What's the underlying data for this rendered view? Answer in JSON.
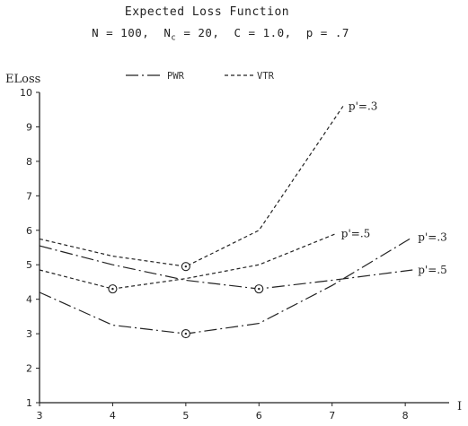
{
  "chart_data": {
    "type": "line",
    "title": "Expected Loss Function",
    "subtitle": "N = 100,  N_c = 20,  C = 1.0,  p = .7",
    "ylabel": "ELoss",
    "xlabel": "I",
    "xlim": [
      3,
      8.6
    ],
    "ylim": [
      1,
      10
    ],
    "x_ticks": [
      3,
      4,
      5,
      6,
      7,
      8
    ],
    "y_ticks": [
      1,
      2,
      3,
      4,
      5,
      6,
      7,
      8,
      9,
      10
    ],
    "legend_position": "top-center",
    "legend": [
      {
        "label": "PWR",
        "style": "dash-dot"
      },
      {
        "label": "VTR",
        "style": "dotted"
      }
    ],
    "series": [
      {
        "group": "VTR",
        "annotation": "p'=.3",
        "style": "dotted",
        "x": [
          3,
          4,
          5,
          6,
          7.15
        ],
        "y": [
          5.75,
          5.25,
          4.95,
          6.0,
          9.6
        ],
        "marker_x": 5
      },
      {
        "group": "VTR",
        "annotation": "p'=.5",
        "style": "dotted",
        "x": [
          3,
          4,
          5,
          6,
          7.05
        ],
        "y": [
          4.85,
          4.3,
          4.6,
          5.0,
          5.9
        ],
        "marker_x": 4
      },
      {
        "group": "PWR",
        "annotation": "p'=.3",
        "style": "dash-dot",
        "x": [
          3,
          4,
          5,
          6,
          7,
          8.1
        ],
        "y": [
          4.2,
          3.25,
          3.0,
          3.3,
          4.4,
          5.8
        ],
        "marker_x": 5
      },
      {
        "group": "PWR",
        "annotation": "p'=.5",
        "style": "dash-dot",
        "x": [
          3,
          4,
          5,
          6,
          7,
          8.1
        ],
        "y": [
          5.55,
          5.0,
          4.55,
          4.3,
          4.55,
          4.85
        ],
        "marker_x": 6
      }
    ]
  }
}
